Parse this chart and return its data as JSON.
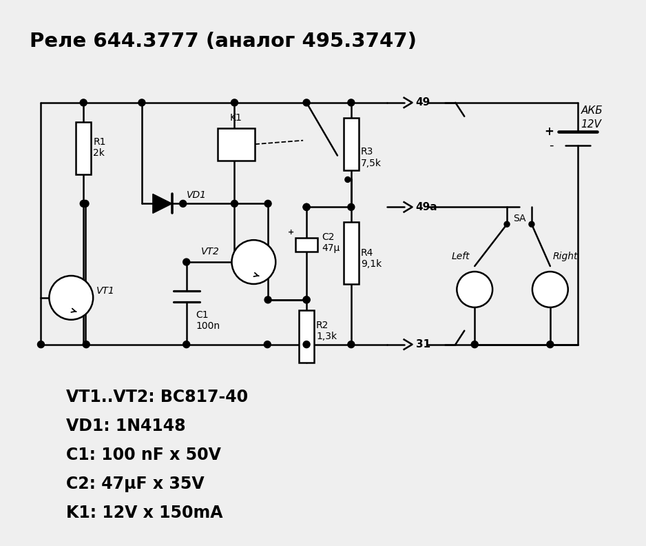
{
  "title": "Реле 644.3777 (аналог 495.3747)",
  "bg_color": "#efefef",
  "line_color": "#000000",
  "lw": 1.8,
  "bom_lines": [
    "VT1..VT2: BC817-40",
    "VD1: 1N4148",
    "C1: 100 nF x 50V",
    "C2: 47μF x 35V",
    "K1: 12V x 150mA"
  ]
}
